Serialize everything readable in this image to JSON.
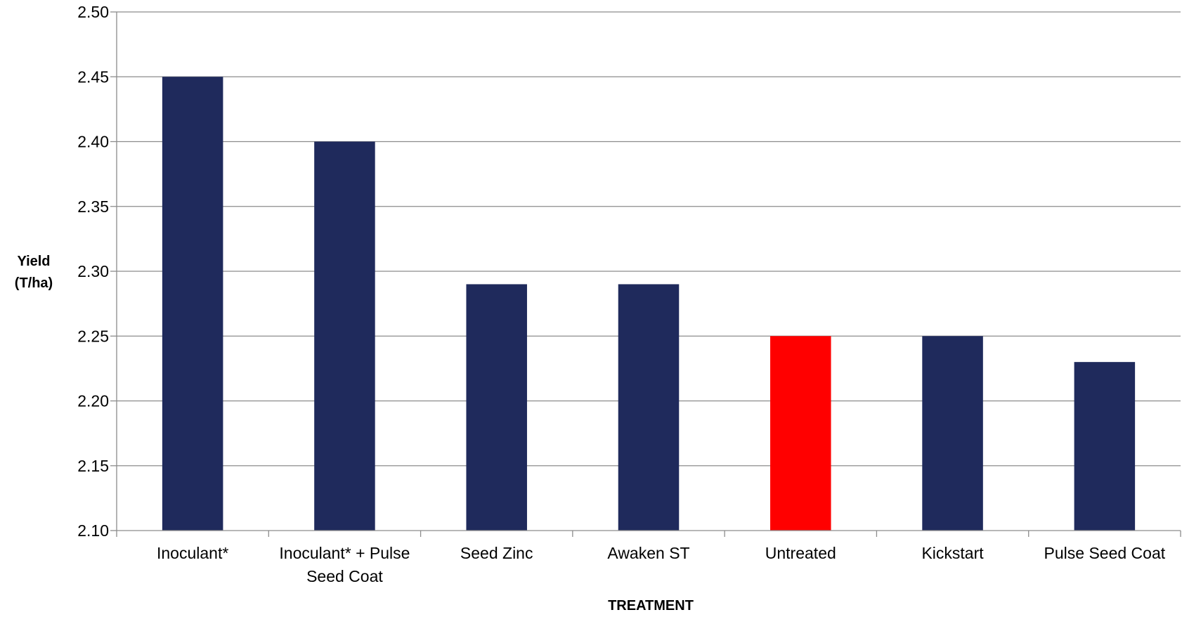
{
  "chart_data": {
    "type": "bar",
    "categories": [
      [
        "Inoculant*"
      ],
      [
        "Inoculant* + Pulse",
        "Seed Coat"
      ],
      [
        "Seed Zinc"
      ],
      [
        "Awaken ST"
      ],
      [
        "Untreated"
      ],
      [
        "Kickstart"
      ],
      [
        "Pulse Seed Coat"
      ]
    ],
    "values": [
      2.45,
      2.4,
      2.29,
      2.29,
      2.25,
      2.25,
      2.23
    ],
    "bar_colors": [
      "#1f2a5c",
      "#1f2a5c",
      "#1f2a5c",
      "#1f2a5c",
      "#ff0000",
      "#1f2a5c",
      "#1f2a5c"
    ],
    "ylim": [
      2.1,
      2.5
    ],
    "yticks": [
      "2.10",
      "2.15",
      "2.20",
      "2.25",
      "2.30",
      "2.35",
      "2.40",
      "2.45",
      "2.50"
    ],
    "ylabel_lines": [
      "Yield",
      "(T/ha)"
    ],
    "xlabel": "TREATMENT",
    "title": "",
    "grid": true,
    "legend": "none"
  }
}
